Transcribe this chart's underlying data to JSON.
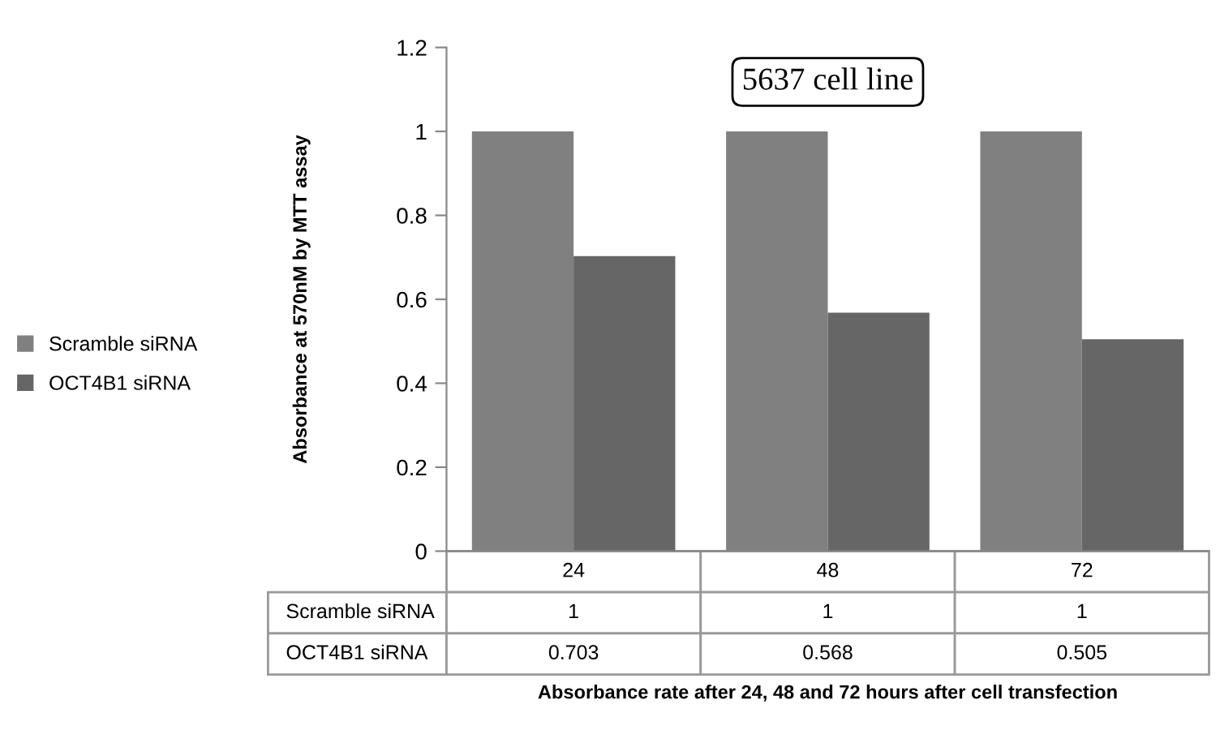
{
  "chart_data": {
    "type": "bar",
    "title": "5637 cell line",
    "ylabel": "Absorbance at 570nM by MTT assay",
    "annotations": [
      "Absorbance rate after 24, 48 and 72 hours after cell transfection"
    ],
    "categories": [
      "24",
      "48",
      "72"
    ],
    "series": [
      {
        "name": "Scramble siRNA",
        "color": "#808080",
        "values": [
          1,
          1,
          1
        ]
      },
      {
        "name": "OCT4B1 siRNA",
        "color": "#666666",
        "values": [
          0.703,
          0.568,
          0.505
        ]
      }
    ],
    "ylim": [
      0,
      1.2
    ],
    "yticks": [
      0,
      0.2,
      0.4,
      0.6,
      0.8,
      1,
      1.2
    ],
    "legend": "left",
    "data_labels": true
  }
}
